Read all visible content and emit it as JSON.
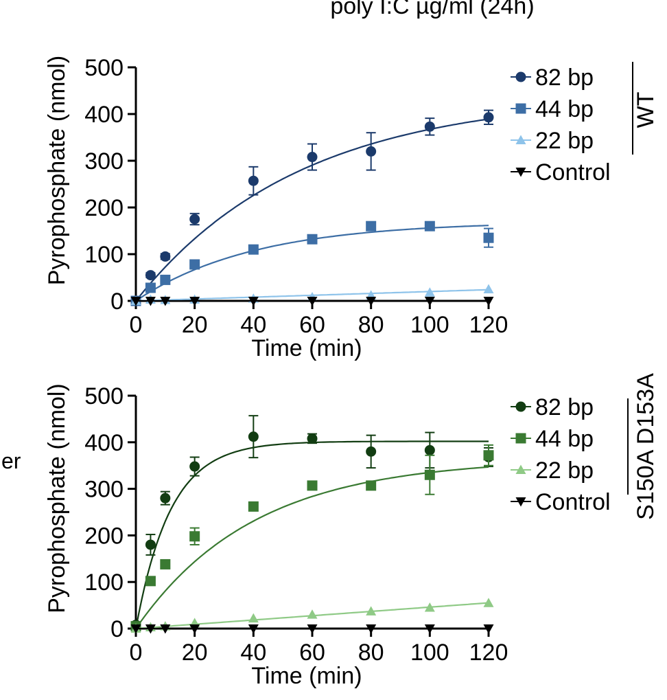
{
  "header_fragment": "poly I:C µg/ml (24h)",
  "side_fragment": "er",
  "side_fragment_color": "#3f7a2e",
  "chart_data": [
    {
      "type": "scatter",
      "xlabel": "Time (min)",
      "ylabel": "Pyrophosphate (nmol)",
      "xlim": [
        0,
        120
      ],
      "ylim": [
        0,
        500
      ],
      "xticks": [
        0,
        20,
        40,
        60,
        80,
        100,
        120
      ],
      "yticks": [
        0,
        100,
        200,
        300,
        400,
        500
      ],
      "group_label": "WT",
      "legend_position": "right",
      "series": [
        {
          "name": "82 bp",
          "marker": "circle",
          "color": "#1b3a6b",
          "x": [
            0,
            5,
            10,
            20,
            40,
            60,
            80,
            100,
            120
          ],
          "y": [
            0,
            55,
            95,
            175,
            257,
            308,
            320,
            373,
            393
          ],
          "err": [
            0,
            5,
            6,
            12,
            30,
            28,
            40,
            18,
            15
          ],
          "fit": {
            "plateau": 440,
            "k": 0.018
          }
        },
        {
          "name": "44 bp",
          "marker": "square",
          "color": "#3d6ea5",
          "x": [
            0,
            5,
            10,
            20,
            40,
            60,
            80,
            100,
            120
          ],
          "y": [
            0,
            28,
            45,
            78,
            110,
            132,
            160,
            160,
            135
          ],
          "err": [
            0,
            4,
            5,
            6,
            6,
            6,
            6,
            6,
            20
          ],
          "fit": {
            "plateau": 170,
            "k": 0.025
          }
        },
        {
          "name": "22 bp",
          "marker": "triangle",
          "color": "#8ec3ea",
          "x": [
            0,
            5,
            10,
            20,
            40,
            60,
            80,
            100,
            120
          ],
          "y": [
            0,
            3,
            2,
            3,
            5,
            8,
            12,
            18,
            25
          ],
          "err": [
            0,
            0,
            0,
            0,
            0,
            0,
            0,
            0,
            0
          ],
          "fit": {
            "linear": 0.2
          }
        },
        {
          "name": "Control",
          "marker": "triangle-down",
          "color": "#000000",
          "x": [
            0,
            5,
            10,
            20,
            40,
            60,
            80,
            100,
            120
          ],
          "y": [
            0,
            0,
            0,
            0,
            0,
            0,
            0,
            0,
            0
          ],
          "err": [
            0,
            0,
            0,
            0,
            0,
            0,
            0,
            0,
            0
          ],
          "fit": {
            "linear": 0
          }
        }
      ]
    },
    {
      "type": "scatter",
      "xlabel": "Time (min)",
      "ylabel": "Pyrophosphate (nmol)",
      "xlim": [
        0,
        120
      ],
      "ylim": [
        0,
        500
      ],
      "xticks": [
        0,
        20,
        40,
        60,
        80,
        100,
        120
      ],
      "yticks": [
        0,
        100,
        200,
        300,
        400,
        500
      ],
      "group_label": "S150A D153A",
      "legend_position": "right",
      "series": [
        {
          "name": "82 bp",
          "marker": "circle",
          "color": "#123d12",
          "x": [
            0,
            5,
            10,
            20,
            40,
            60,
            80,
            100,
            120
          ],
          "y": [
            8,
            180,
            280,
            348,
            412,
            408,
            380,
            383,
            368
          ],
          "err": [
            0,
            22,
            14,
            20,
            45,
            10,
            35,
            38,
            20
          ],
          "fit": {
            "plateau": 402,
            "k": 0.085
          }
        },
        {
          "name": "44 bp",
          "marker": "square",
          "color": "#3a7a32",
          "x": [
            0,
            5,
            10,
            20,
            40,
            60,
            80,
            100,
            120
          ],
          "y": [
            5,
            102,
            138,
            198,
            262,
            307,
            307,
            330,
            372
          ],
          "err": [
            0,
            5,
            8,
            18,
            6,
            6,
            6,
            42,
            22
          ],
          "fit": {
            "plateau": 365,
            "k": 0.025
          }
        },
        {
          "name": "22 bp",
          "marker": "triangle",
          "color": "#8fca86",
          "x": [
            0,
            5,
            10,
            20,
            40,
            60,
            80,
            100,
            120
          ],
          "y": [
            0,
            3,
            5,
            12,
            22,
            30,
            37,
            45,
            55
          ],
          "err": [
            0,
            0,
            0,
            0,
            0,
            0,
            0,
            0,
            0
          ],
          "fit": {
            "linear": 0.46
          }
        },
        {
          "name": "Control",
          "marker": "triangle-down",
          "color": "#000000",
          "x": [
            0,
            5,
            10,
            20,
            40,
            60,
            80,
            100,
            120
          ],
          "y": [
            0,
            0,
            0,
            0,
            0,
            0,
            0,
            0,
            0
          ],
          "err": [
            0,
            0,
            0,
            0,
            0,
            0,
            0,
            0,
            0
          ],
          "fit": {
            "linear": 0
          }
        }
      ]
    }
  ]
}
